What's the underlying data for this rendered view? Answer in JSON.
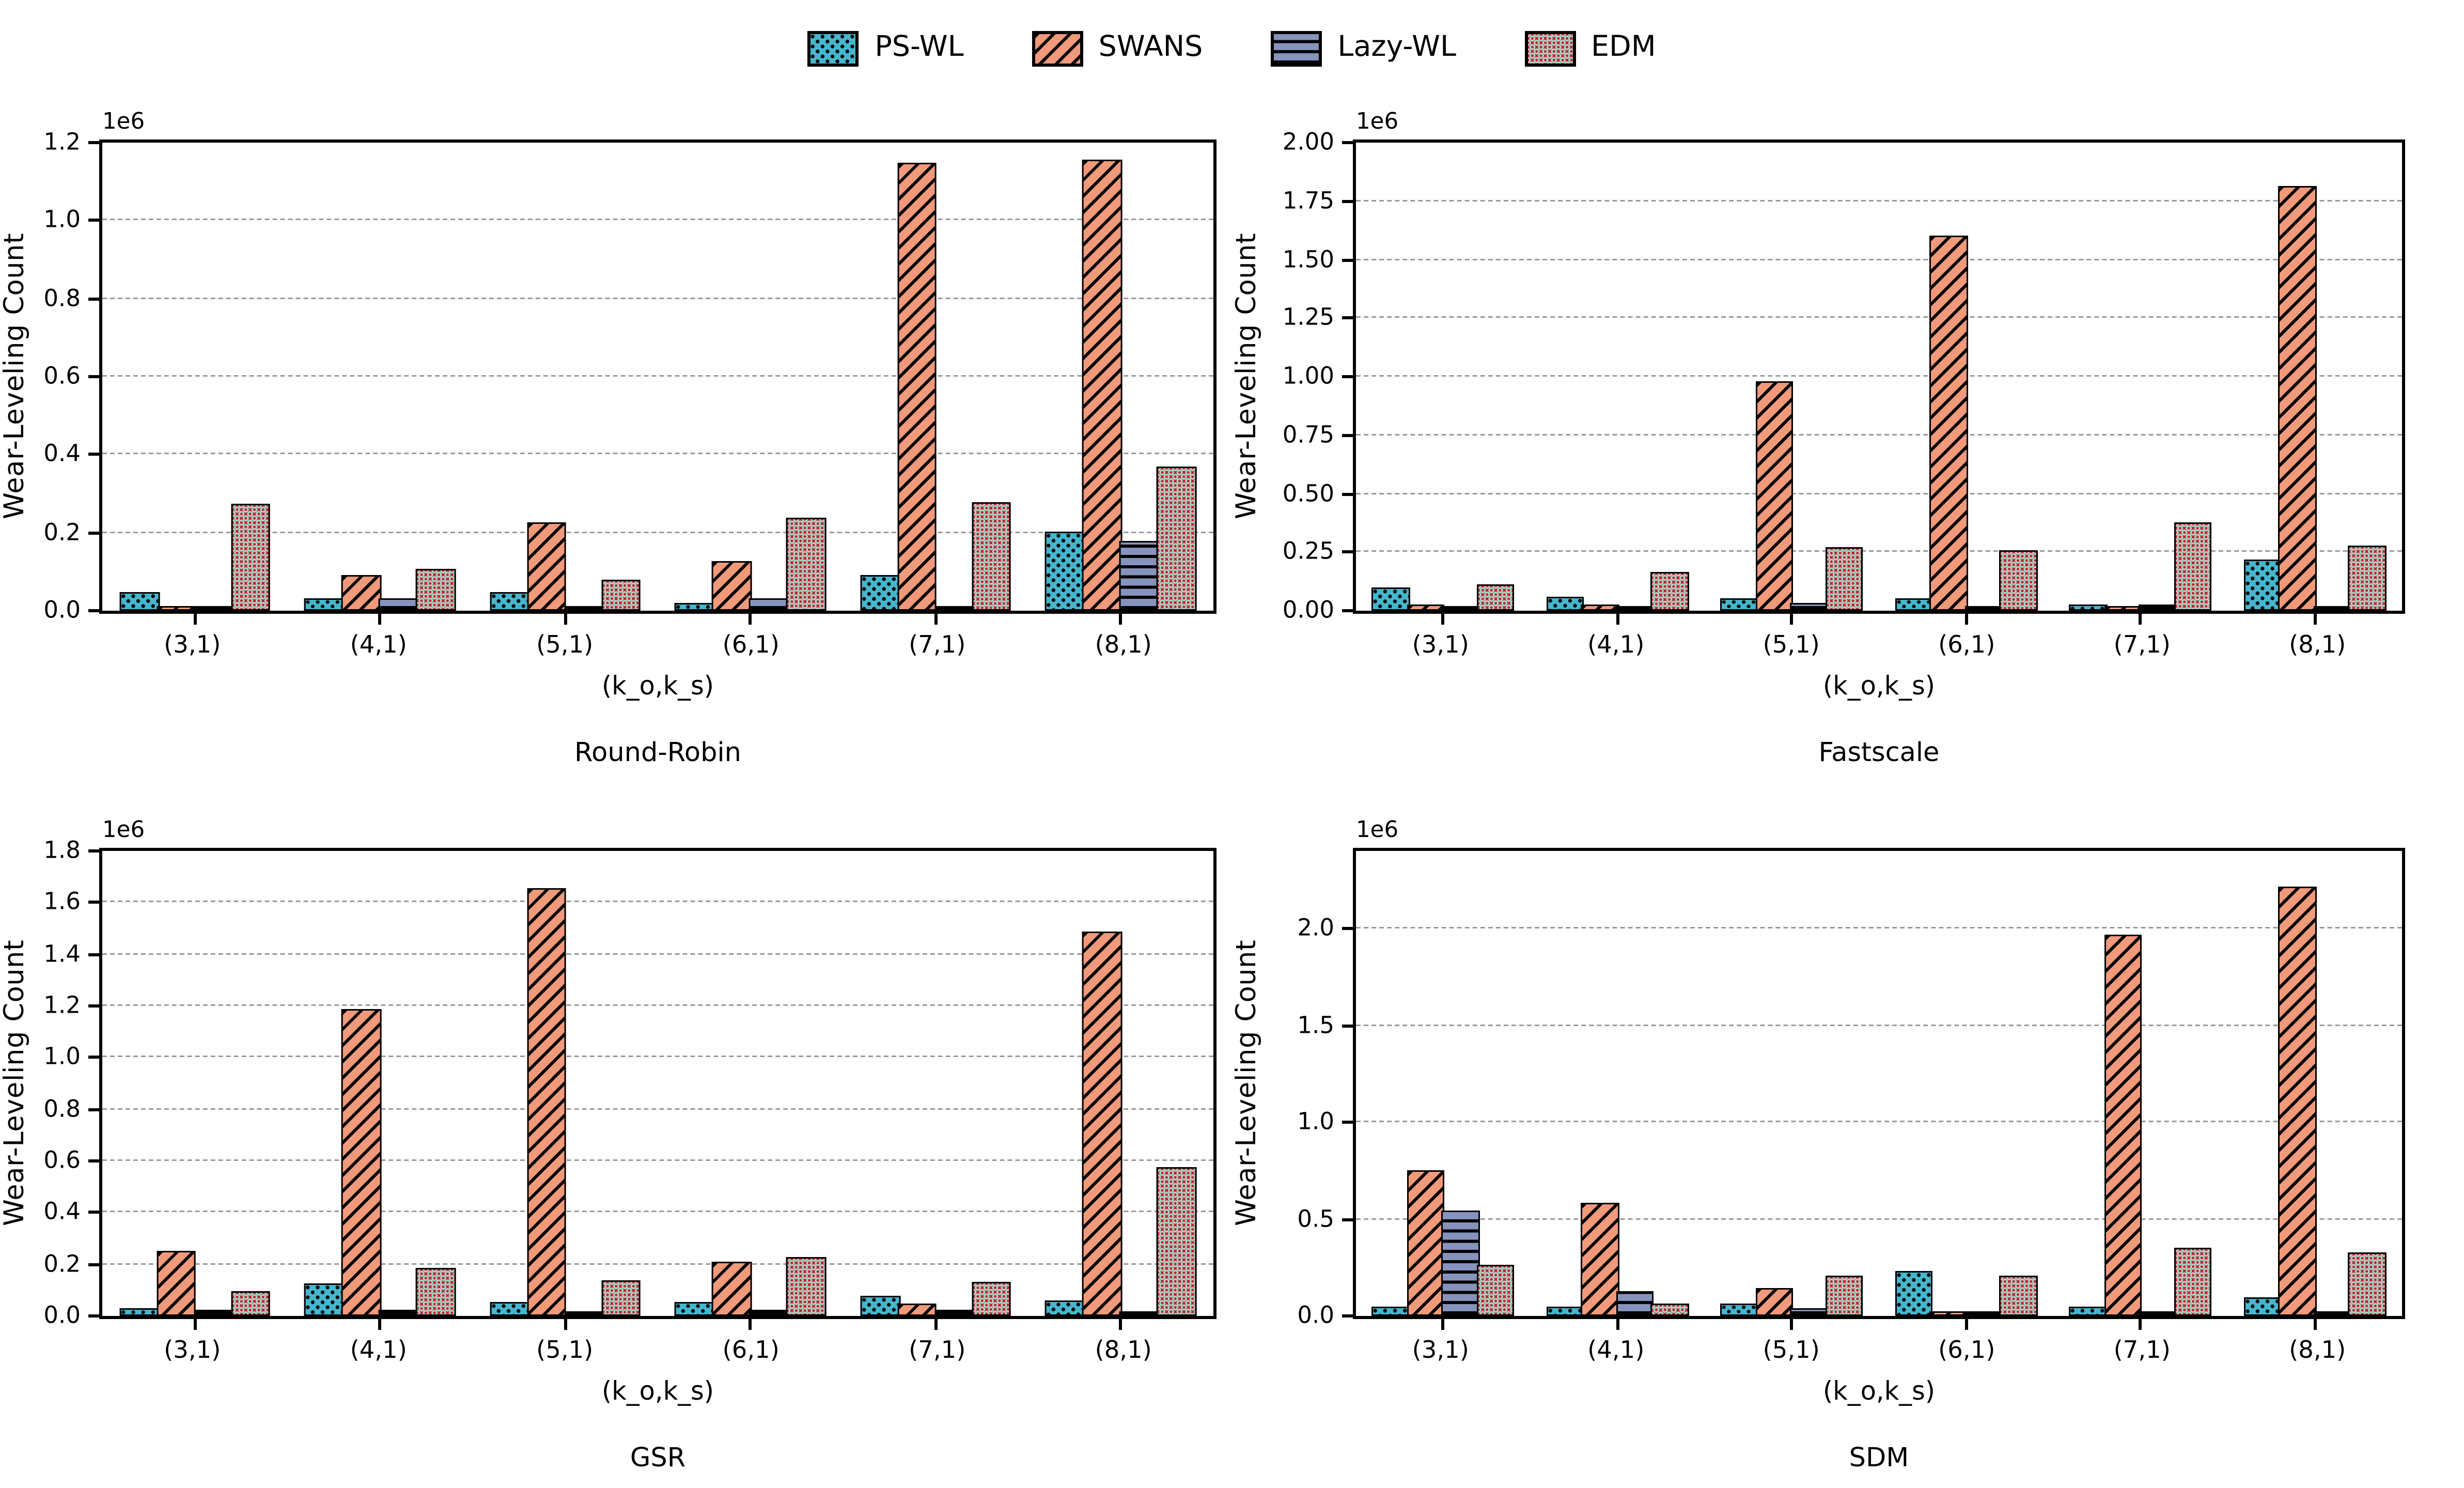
{
  "figure": {
    "background": "#ffffff",
    "axis_color": "#000000",
    "gridline_color": "#9a9a9a"
  },
  "legend": {
    "items": [
      {
        "label": "PS-WL",
        "color": "#45b6ce",
        "hatch_color": "#000000",
        "pattern": "dots",
        "icon": "dotted-swatch"
      },
      {
        "label": "SWANS",
        "color": "#f0997b",
        "hatch_color": "#000000",
        "pattern": "diag",
        "icon": "diagonal-swatch"
      },
      {
        "label": "Lazy-WL",
        "color": "#8593bd",
        "hatch_color": "#000000",
        "pattern": "hlines",
        "icon": "hlines-swatch"
      },
      {
        "label": "EDM",
        "color": "#c41e32",
        "hatch_color": "#a9d6c5",
        "pattern": "circles",
        "icon": "circles-swatch"
      }
    ]
  },
  "chart_data": [
    {
      "type": "bar",
      "title": "Round-Robin",
      "xlabel": "(k_o,k_s)",
      "ylabel": "Wear-Leveling Count",
      "offset_label": "1e6",
      "grid": "dashed-horizontal",
      "legend_position": "figure-top-center",
      "categories": [
        "(3,1)",
        "(4,1)",
        "(5,1)",
        "(6,1)",
        "(7,1)",
        "(8,1)"
      ],
      "ylim": [
        0,
        1200000
      ],
      "yticks": [
        0,
        200000,
        400000,
        600000,
        800000,
        1000000,
        1200000
      ],
      "ytick_labels": [
        "0.0",
        "0.2",
        "0.4",
        "0.6",
        "0.8",
        "1.0",
        "1.2"
      ],
      "series": [
        {
          "name": "PS-WL",
          "values": [
            40000,
            22000,
            40000,
            12000,
            85000,
            195000
          ]
        },
        {
          "name": "SWANS",
          "values": [
            3000,
            85000,
            220000,
            120000,
            1140000,
            1150000
          ]
        },
        {
          "name": "Lazy-WL",
          "values": [
            3000,
            25000,
            4000,
            25000,
            4000,
            170000
          ]
        },
        {
          "name": "EDM",
          "values": [
            265000,
            100000,
            70000,
            230000,
            270000,
            360000
          ]
        }
      ]
    },
    {
      "type": "bar",
      "title": "Fastscale",
      "xlabel": "(k_o,k_s)",
      "ylabel": "Wear-Leveling Count",
      "offset_label": "1e6",
      "grid": "dashed-horizontal",
      "legend_position": "figure-top-center",
      "categories": [
        "(3,1)",
        "(4,1)",
        "(5,1)",
        "(6,1)",
        "(7,1)",
        "(8,1)"
      ],
      "ylim": [
        0,
        2000000
      ],
      "yticks": [
        0,
        250000,
        500000,
        750000,
        1000000,
        1250000,
        1500000,
        1750000,
        2000000
      ],
      "ytick_labels": [
        "0.00",
        "0.25",
        "0.50",
        "0.75",
        "1.00",
        "1.25",
        "1.50",
        "1.75",
        "2.00"
      ],
      "series": [
        {
          "name": "PS-WL",
          "values": [
            85000,
            45000,
            42000,
            42000,
            15000,
            207000
          ]
        },
        {
          "name": "SWANS",
          "values": [
            12000,
            12000,
            965000,
            1590000,
            4000,
            1800000
          ]
        },
        {
          "name": "Lazy-WL",
          "values": [
            8000,
            8000,
            22000,
            10000,
            12000,
            10000
          ]
        },
        {
          "name": "EDM",
          "values": [
            100000,
            155000,
            260000,
            245000,
            365000,
            265000
          ]
        }
      ]
    },
    {
      "type": "bar",
      "title": "GSR",
      "xlabel": "(k_o,k_s)",
      "ylabel": "Wear-Leveling Count",
      "offset_label": "1e6",
      "grid": "dashed-horizontal",
      "legend_position": "figure-top-center",
      "categories": [
        "(3,1)",
        "(4,1)",
        "(5,1)",
        "(6,1)",
        "(7,1)",
        "(8,1)"
      ],
      "ylim": [
        0,
        1800000
      ],
      "yticks": [
        0,
        200000,
        400000,
        600000,
        800000,
        1000000,
        1200000,
        1400000,
        1600000,
        1800000
      ],
      "ytick_labels": [
        "0.0",
        "0.2",
        "0.4",
        "0.6",
        "0.8",
        "1.0",
        "1.2",
        "1.4",
        "1.6",
        "1.8"
      ],
      "series": [
        {
          "name": "PS-WL",
          "values": [
            20000,
            115000,
            45000,
            45000,
            65000,
            50000
          ]
        },
        {
          "name": "SWANS",
          "values": [
            240000,
            1175000,
            1645000,
            200000,
            35000,
            1475000
          ]
        },
        {
          "name": "Lazy-WL",
          "values": [
            10000,
            10000,
            5000,
            12000,
            12000,
            5000
          ]
        },
        {
          "name": "EDM",
          "values": [
            85000,
            175000,
            125000,
            215000,
            120000,
            565000
          ]
        }
      ]
    },
    {
      "type": "bar",
      "title": "SDM",
      "xlabel": "(k_o,k_s)",
      "ylabel": "Wear-Leveling Count",
      "offset_label": "1e6",
      "grid": "dashed-horizontal",
      "legend_position": "figure-top-center",
      "categories": [
        "(3,1)",
        "(4,1)",
        "(5,1)",
        "(6,1)",
        "(7,1)",
        "(8,1)"
      ],
      "ylim": [
        0,
        2400000
      ],
      "yticks": [
        0,
        500000,
        1000000,
        1500000,
        2000000
      ],
      "ytick_labels": [
        "0.0",
        "0.5",
        "1.0",
        "1.5",
        "2.0"
      ],
      "series": [
        {
          "name": "PS-WL",
          "values": [
            30000,
            30000,
            50000,
            220000,
            30000,
            80000
          ]
        },
        {
          "name": "SWANS",
          "values": [
            740000,
            570000,
            130000,
            5000,
            1950000,
            2200000
          ]
        },
        {
          "name": "Lazy-WL",
          "values": [
            530000,
            115000,
            25000,
            5000,
            8000,
            8000
          ]
        },
        {
          "name": "EDM",
          "values": [
            250000,
            50000,
            190000,
            195000,
            340000,
            310000
          ]
        }
      ]
    }
  ]
}
